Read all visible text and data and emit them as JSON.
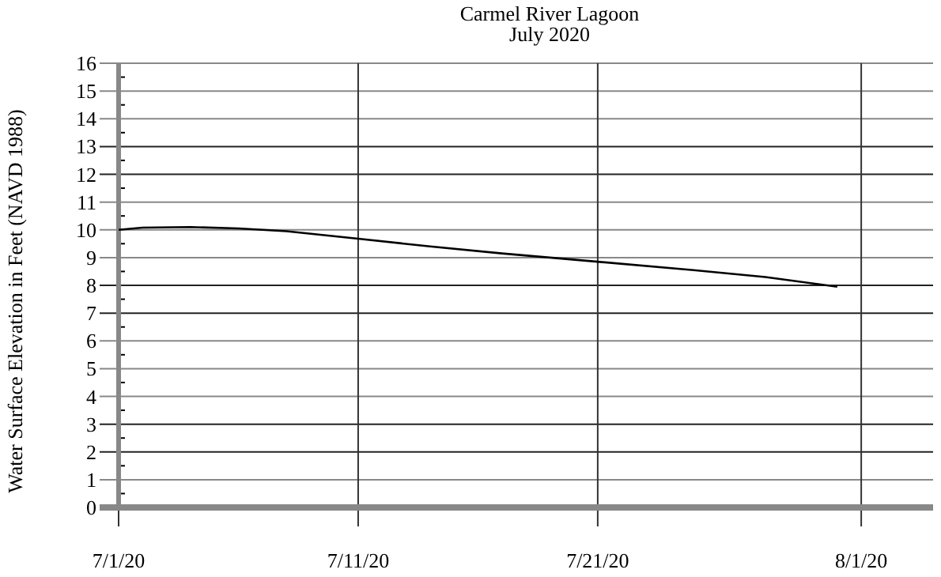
{
  "chart_data": {
    "type": "line",
    "title": "Carmel River Lagoon",
    "subtitle": "July 2020",
    "ylabel": "Water Surface Elevation in Feet (NAVD 1988)",
    "x": [
      "2020-07-01",
      "2020-07-02",
      "2020-07-04",
      "2020-07-06",
      "2020-07-08",
      "2020-07-11",
      "2020-07-14",
      "2020-07-17",
      "2020-07-21",
      "2020-07-25",
      "2020-07-28",
      "2020-07-31"
    ],
    "series": [
      {
        "color": "#000000",
        "values": [
          10.0,
          10.08,
          10.1,
          10.05,
          9.95,
          9.68,
          9.4,
          9.15,
          8.85,
          8.55,
          8.3,
          7.95
        ]
      }
    ],
    "xlim": [
      "2020-07-01",
      "2020-08-04"
    ],
    "xticks": [
      {
        "value": "2020-07-01",
        "label": "7/1/20"
      },
      {
        "value": "2020-07-11",
        "label": "7/11/20"
      },
      {
        "value": "2020-07-21",
        "label": "7/21/20"
      },
      {
        "value": "2020-08-01",
        "label": "8/1/20"
      }
    ],
    "ylim": [
      0,
      16
    ],
    "yticks": [
      0,
      1,
      2,
      3,
      4,
      5,
      6,
      7,
      8,
      9,
      10,
      11,
      12,
      13,
      14,
      15,
      16
    ],
    "grid": true,
    "marker": "none",
    "line_style": "solid"
  }
}
